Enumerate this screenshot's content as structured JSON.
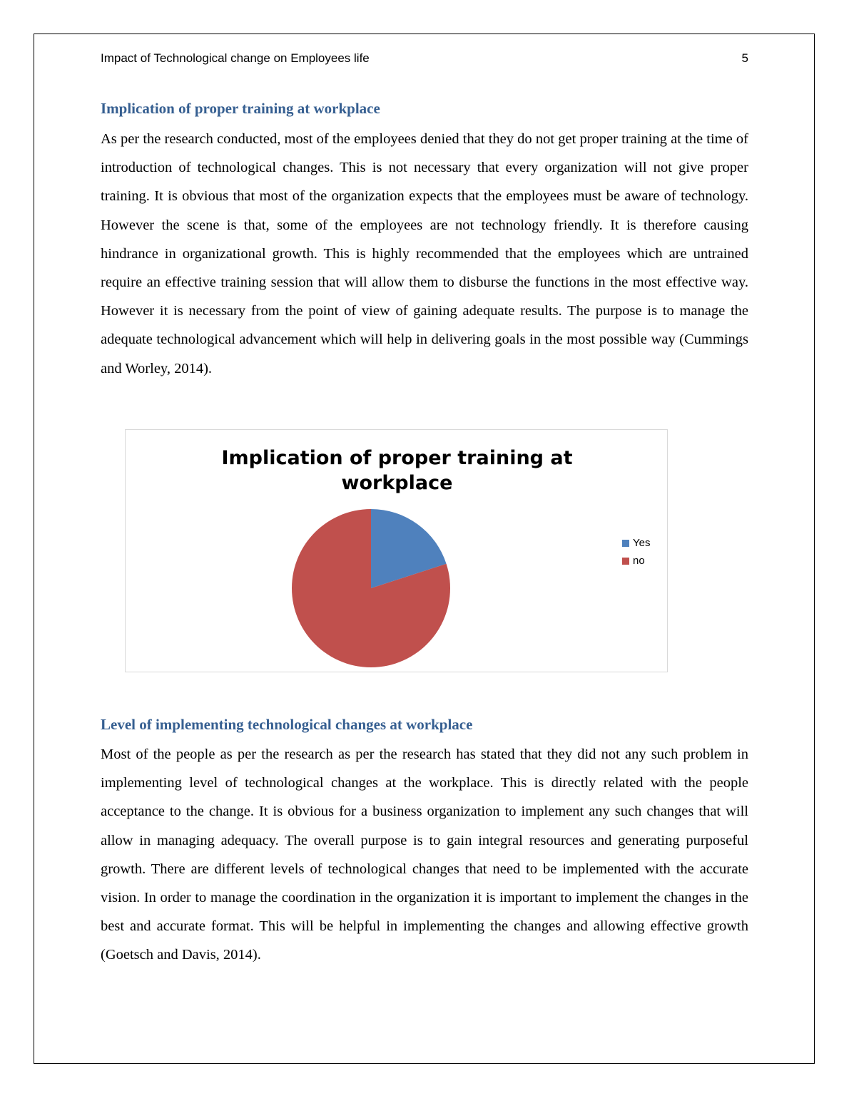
{
  "header": {
    "title": "Impact of Technological change on Employees life",
    "page_number": "5"
  },
  "section1": {
    "heading": "Implication of proper training at workplace",
    "body": "As per the research conducted, most of the employees denied that they do not get proper training at the time of introduction of technological changes.  This is not necessary that every organization will not give proper training. It is obvious that most of the organization expects that the employees must be aware of technology. However the scene is that, some of the employees are not technology friendly. It is therefore causing hindrance in organizational growth. This is highly recommended that the employees which are untrained require an effective training session that will allow them to disburse the functions in the most effective way. However it is necessary from the point of view of gaining adequate results. The purpose is to manage the adequate technological advancement which will help in delivering goals in the most possible way (Cummings and Worley, 2014)."
  },
  "chart_data": {
    "type": "pie",
    "title_lines": [
      "Implication of proper training at",
      "workplace"
    ],
    "categories": [
      "Yes",
      "no"
    ],
    "values": [
      20,
      80
    ],
    "colors": [
      "#4f81bd",
      "#c0504d"
    ],
    "start_angle": "12 o'clock, clockwise",
    "legend_placement": "right"
  },
  "section2": {
    "heading": "Level of implementing technological changes at workplace",
    "body": "Most of the people as per the research as per the research has stated that they did not any such problem in implementing level of technological changes at the workplace. This is directly related with the people acceptance to the change. It is obvious for a business organization to implement any such changes that will allow in managing adequacy. The overall purpose is to gain integral resources and generating purposeful growth. There are different levels of technological changes that need to be implemented with the accurate vision. In order to manage the coordination in the organization it is important to implement the changes in the best and accurate format. This will be helpful in implementing the changes and allowing effective growth (Goetsch and Davis, 2014)."
  }
}
